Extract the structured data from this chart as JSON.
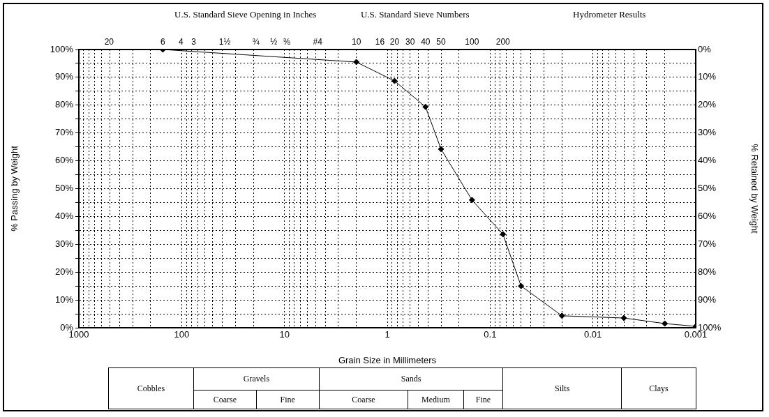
{
  "chart_data": {
    "type": "line",
    "xlabel": "Grain Size in Millimeters",
    "ylabel": "% Passing by Weight",
    "y2label": "% Retained by Weight",
    "x": [
      152.4,
      2.0,
      0.85,
      0.425,
      0.3,
      0.15,
      0.075,
      0.05,
      0.02,
      0.005,
      0.002,
      0.001
    ],
    "series": [
      {
        "color": "#000000",
        "values": [
          100,
          95.5,
          88.7,
          79.4,
          64.2,
          45.9,
          33.6,
          15.0,
          4.3,
          3.5,
          1.5,
          0.5
        ]
      }
    ],
    "xlim": [
      1000,
      0.001
    ],
    "xticks": [
      1000,
      {
        "value": 900,
        "label": null
      },
      {
        "value": 800,
        "label": null
      },
      {
        "value": 700,
        "label": null
      },
      {
        "value": 600,
        "label": null
      },
      {
        "value": 500,
        "label": null
      },
      {
        "value": 400,
        "label": null
      },
      {
        "value": 300,
        "label": null
      },
      {
        "value": 200,
        "label": null
      },
      100,
      {
        "value": 90,
        "label": null
      },
      {
        "value": 80,
        "label": null
      },
      {
        "value": 70,
        "label": null
      },
      {
        "value": 60,
        "label": null
      },
      {
        "value": 50,
        "label": null
      },
      {
        "value": 40,
        "label": null
      },
      {
        "value": 30,
        "label": null
      },
      {
        "value": 20,
        "label": null
      },
      10,
      {
        "value": 9,
        "label": null
      },
      {
        "value": 8,
        "label": null
      },
      {
        "value": 7,
        "label": null
      },
      {
        "value": 6,
        "label": null
      },
      {
        "value": 5,
        "label": null
      },
      {
        "value": 4,
        "label": null
      },
      {
        "value": 3,
        "label": null
      },
      {
        "value": 2,
        "label": null
      },
      1,
      {
        "value": 0.9,
        "label": null
      },
      {
        "value": 0.8,
        "label": null
      },
      {
        "value": 0.7,
        "label": null
      },
      {
        "value": 0.6,
        "label": null
      },
      {
        "value": 0.5,
        "label": null
      },
      {
        "value": 0.4,
        "label": null
      },
      {
        "value": 0.3,
        "label": null
      },
      {
        "value": 0.2,
        "label": null
      },
      0.1,
      {
        "value": 0.09,
        "label": null
      },
      {
        "value": 0.08,
        "label": null
      },
      {
        "value": 0.07,
        "label": null
      },
      {
        "value": 0.06,
        "label": null
      },
      {
        "value": 0.05,
        "label": null
      },
      {
        "value": 0.04,
        "label": null
      },
      {
        "value": 0.03,
        "label": null
      },
      {
        "value": 0.02,
        "label": null
      },
      0.01,
      {
        "value": 0.009,
        "label": null
      },
      {
        "value": 0.008,
        "label": null
      },
      {
        "value": 0.007,
        "label": null
      },
      {
        "value": 0.006,
        "label": null
      },
      {
        "value": 0.005,
        "label": null
      },
      {
        "value": 0.004,
        "label": null
      },
      {
        "value": 0.003,
        "label": null
      },
      {
        "value": 0.002,
        "label": null
      },
      0.001
    ],
    "ylim": [
      0,
      100
    ],
    "yticks": [
      {
        "value": 0,
        "label": "0%"
      },
      {
        "value": 5,
        "label": null
      },
      {
        "value": 10,
        "label": "10%"
      },
      {
        "value": 15,
        "label": null
      },
      {
        "value": 20,
        "label": "20%"
      },
      {
        "value": 25,
        "label": null
      },
      {
        "value": 30,
        "label": "30%"
      },
      {
        "value": 35,
        "label": null
      },
      {
        "value": 40,
        "label": "40%"
      },
      {
        "value": 45,
        "label": null
      },
      {
        "value": 50,
        "label": "50%"
      },
      {
        "value": 55,
        "label": null
      },
      {
        "value": 60,
        "label": "60%"
      },
      {
        "value": 65,
        "label": null
      },
      {
        "value": 70,
        "label": "70%"
      },
      {
        "value": 75,
        "label": null
      },
      {
        "value": 80,
        "label": "80%"
      },
      {
        "value": 85,
        "label": null
      },
      {
        "value": 90,
        "label": "90%"
      },
      {
        "value": 95,
        "label": null
      },
      {
        "value": 100,
        "label": "100%"
      }
    ],
    "y2lim": [
      100,
      0
    ],
    "y2ticks": [
      {
        "value": 0,
        "label": "0%"
      },
      {
        "value": 10,
        "label": "10%"
      },
      {
        "value": 20,
        "label": "20%"
      },
      {
        "value": 30,
        "label": "30%"
      },
      {
        "value": 40,
        "label": "40%"
      },
      {
        "value": 50,
        "label": "50%"
      },
      {
        "value": 60,
        "label": "60%"
      },
      {
        "value": 70,
        "label": "70%"
      },
      {
        "value": 80,
        "label": "80%"
      },
      {
        "value": 90,
        "label": "90%"
      },
      {
        "value": 100,
        "label": "100%"
      }
    ],
    "log": "x",
    "grid": true,
    "legend": false,
    "marker": "diamond",
    "line_style": "solid",
    "annotations": [
      "U.S. Standard Sieve Opening in Inches",
      "U.S. Standard Sieve Numbers",
      "Hydrometer Results",
      "Cobbles",
      "Gravels",
      "Sands",
      "Silts",
      "Clays",
      "Coarse",
      "Fine",
      "Coarse",
      "Medium",
      "Fine",
      "20",
      "6",
      "4",
      "3",
      "1½",
      "¾",
      "½",
      "⅜",
      "#4",
      "10",
      "16",
      "20",
      "30",
      "40",
      "50",
      "100",
      "200"
    ]
  }
}
